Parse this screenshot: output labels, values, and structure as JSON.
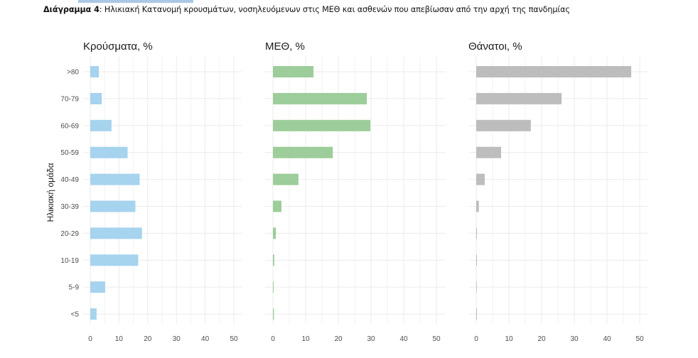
{
  "caption": {
    "label": "Διάγραμμα 4",
    "text": ": Ηλικιακή Κατανομή κρουσμάτων, νοσηλευόμενων στις ΜΕΘ και ασθενών που απεβίωσαν από την αρχή της πανδημίας"
  },
  "chart_data": {
    "type": "bar",
    "orientation": "horizontal",
    "title": "Ηλικιακή Κατανομή κρουσμάτων, νοσηλευόμενων στις ΜΕΘ και ασθενών που απεβίωσαν από την αρχή της πανδημίας",
    "ylabel": "Ηλικιακή ομάδα",
    "categories": [
      ">80",
      "70-79",
      "60-69",
      "50-59",
      "40-49",
      "30-39",
      "20-29",
      "10-19",
      "5-9",
      "<5"
    ],
    "xlim": [
      0,
      50
    ],
    "xticks": [
      0,
      10,
      20,
      30,
      40,
      50
    ],
    "grid": true,
    "series": [
      {
        "name": "Κρούσματα, %",
        "color": "#a6d3ee",
        "values": [
          3.0,
          4.0,
          7.4,
          13.0,
          17.2,
          15.7,
          18.0,
          16.7,
          5.2,
          2.2
        ]
      },
      {
        "name": "ΜΕΘ, %",
        "color": "#9dcd9a",
        "values": [
          12.4,
          28.7,
          29.8,
          18.3,
          7.8,
          2.6,
          0.9,
          0.4,
          0.2,
          0.3
        ]
      },
      {
        "name": "Θάνατοι, %",
        "color": "#bdbdbd",
        "values": [
          47.4,
          26.1,
          16.7,
          7.6,
          2.6,
          0.8,
          0.2,
          0.1,
          0.0,
          0.1
        ]
      }
    ]
  }
}
